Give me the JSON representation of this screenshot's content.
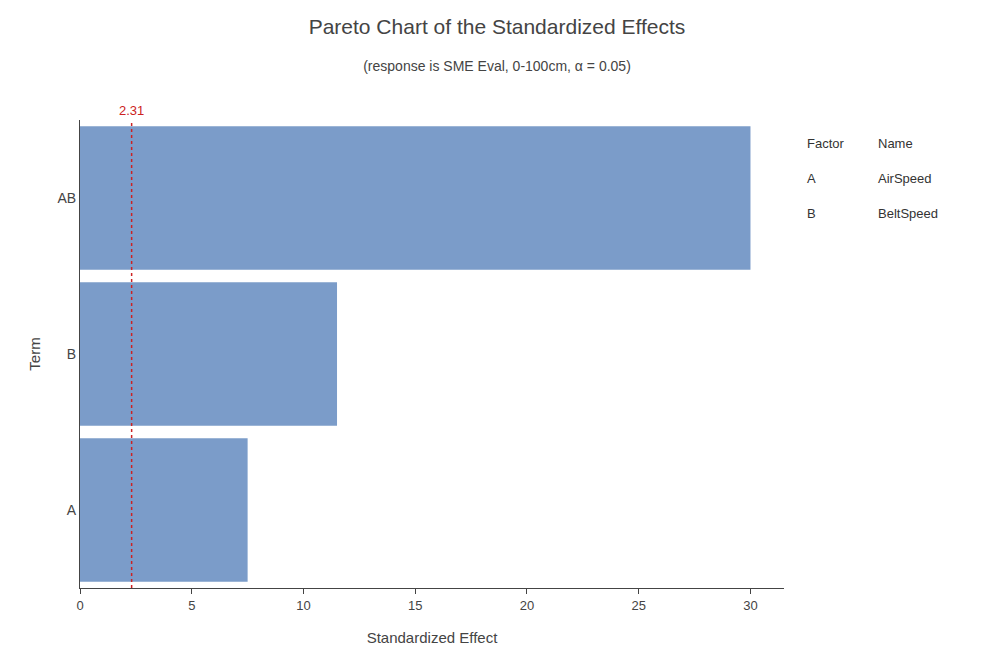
{
  "chart_data": {
    "type": "bar",
    "orientation": "horizontal",
    "title": "Pareto Chart of the Standardized Effects",
    "subtitle": "(response is SME Eval, 0-100cm, α = 0.05)",
    "x_label": "Standardized Effect",
    "y_label": "Term",
    "categories": [
      "A",
      "B",
      "AB"
    ],
    "values": [
      7.5,
      11.5,
      30.0
    ],
    "color": "#7B9CC9",
    "xlim": [
      0,
      31.5
    ],
    "xticks": [
      0,
      5,
      10,
      15,
      20,
      25,
      30
    ],
    "grid": false,
    "reference_line": {
      "x": 2.31,
      "label": "2.31",
      "color": "#CC2222",
      "line_style": "dotted"
    },
    "table": {
      "columns": [
        "Factor",
        "Name"
      ],
      "rows": [
        [
          "A",
          "AirSpeed"
        ],
        [
          "B",
          "BeltSpeed"
        ]
      ]
    }
  }
}
